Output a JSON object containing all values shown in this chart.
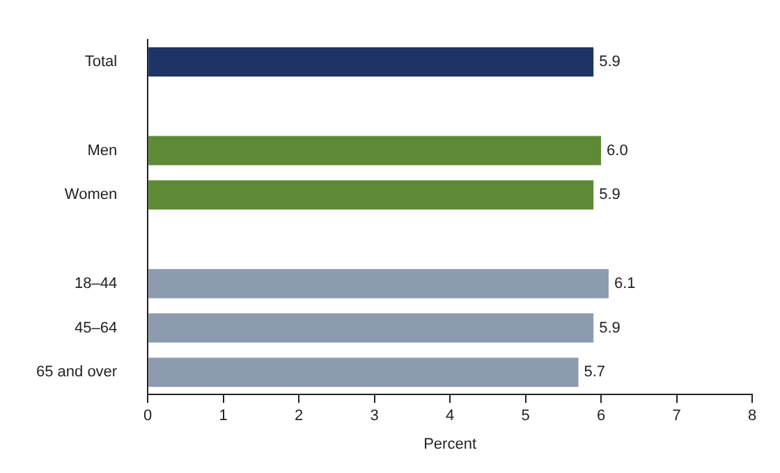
{
  "chart_data": {
    "type": "bar",
    "orientation": "horizontal",
    "categories": [
      "Total",
      null,
      "Men",
      "Women",
      null,
      "18–44",
      "45–64",
      "65 and over"
    ],
    "values": [
      5.9,
      null,
      6.0,
      5.9,
      null,
      6.1,
      5.9,
      5.7
    ],
    "colors": [
      "#1f3466",
      "#000000",
      "#5e8a36",
      "#5e8a36",
      "#000000",
      "#8d9bb1",
      "#8d9bb1",
      "#8d9bb1"
    ],
    "value_labels": [
      "5.9",
      null,
      "6.0",
      "5.9",
      null,
      "6.1",
      "5.9",
      "5.7"
    ],
    "xlabel": "Percent",
    "xlim": [
      0,
      8
    ],
    "xticks": [
      0,
      1,
      2,
      3,
      4,
      5,
      6,
      7,
      8
    ],
    "grid": false,
    "legend": false
  }
}
